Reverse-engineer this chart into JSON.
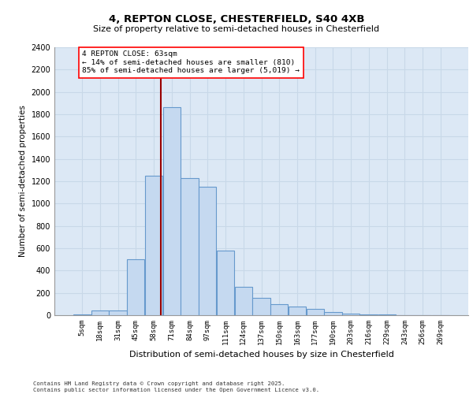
{
  "title1": "4, REPTON CLOSE, CHESTERFIELD, S40 4XB",
  "title2": "Size of property relative to semi-detached houses in Chesterfield",
  "xlabel": "Distribution of semi-detached houses by size in Chesterfield",
  "ylabel": "Number of semi-detached properties",
  "categories": [
    "5sqm",
    "18sqm",
    "31sqm",
    "45sqm",
    "58sqm",
    "71sqm",
    "84sqm",
    "97sqm",
    "111sqm",
    "124sqm",
    "137sqm",
    "150sqm",
    "163sqm",
    "177sqm",
    "190sqm",
    "203sqm",
    "216sqm",
    "229sqm",
    "243sqm",
    "256sqm",
    "269sqm"
  ],
  "values": [
    5,
    40,
    40,
    500,
    1250,
    1860,
    1230,
    1150,
    580,
    255,
    155,
    100,
    75,
    55,
    30,
    12,
    7,
    4,
    2,
    1,
    1
  ],
  "bar_color": "#c5d9f0",
  "bar_edgecolor": "#6699cc",
  "annotation_line1": "4 REPTON CLOSE: 63sqm",
  "annotation_line2": "← 14% of semi-detached houses are smaller (810)",
  "annotation_line3": "85% of semi-detached houses are larger (5,019) →",
  "ylim": [
    0,
    2400
  ],
  "yticks": [
    0,
    200,
    400,
    600,
    800,
    1000,
    1200,
    1400,
    1600,
    1800,
    2000,
    2200,
    2400
  ],
  "bg_color": "#dce8f5",
  "grid_color": "#c8d8e8",
  "footnote1": "Contains HM Land Registry data © Crown copyright and database right 2025.",
  "footnote2": "Contains public sector information licensed under the Open Government Licence v3.0."
}
